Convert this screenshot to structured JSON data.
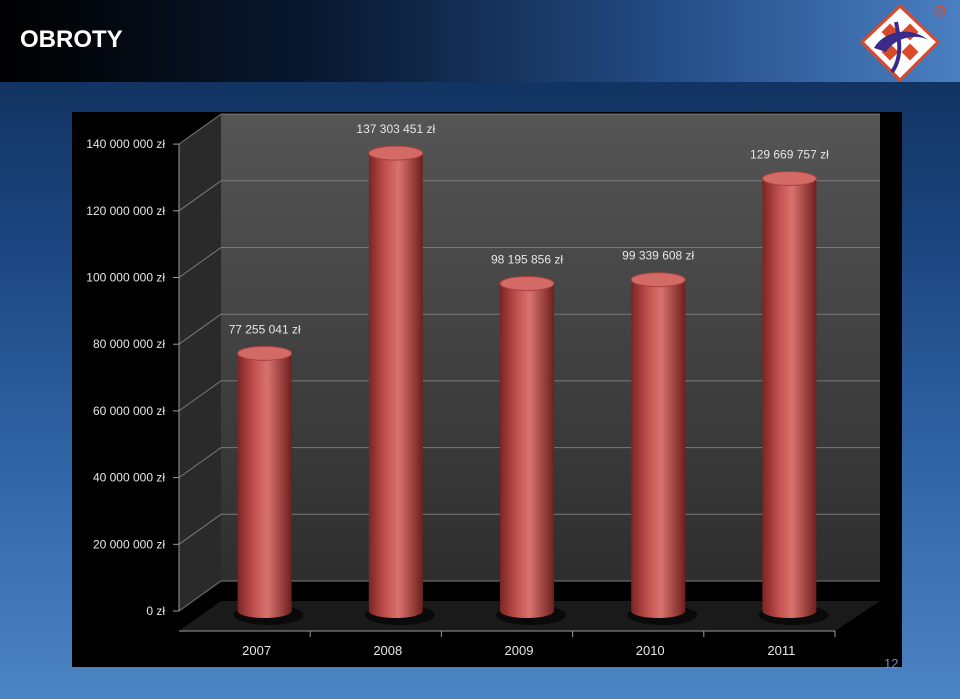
{
  "slide": {
    "title": "OBROTY",
    "slide_number": "12"
  },
  "colors": {
    "bar": "#c0504d",
    "bar_top": "#d46a66",
    "plot_back": "#3c3c3c",
    "plot_floor": "#1a1a1a",
    "chart_bg": "#000000"
  },
  "logo": {
    "icon": "company-logo-icon",
    "mark": "®"
  },
  "chart_data": {
    "type": "bar",
    "style": "3d-cylinder",
    "categories": [
      "2007",
      "2008",
      "2009",
      "2010",
      "2011"
    ],
    "values": [
      77255041,
      137303451,
      98195856,
      99339608,
      129669757
    ],
    "data_labels": [
      "77 255 041 zł",
      "137 303 451 zł",
      "98 195 856 zł",
      "99 339 608 zł",
      "129 669 757 zł"
    ],
    "y_ticks": [
      "0 zł",
      "20 000 000 zł",
      "40 000 000 zł",
      "60 000 000 zł",
      "80 000 000 zł",
      "100 000 000 zł",
      "120 000 000 zł",
      "140 000 000 zł"
    ],
    "ylim": [
      0,
      140000000
    ],
    "grid": true,
    "legend": "none"
  }
}
